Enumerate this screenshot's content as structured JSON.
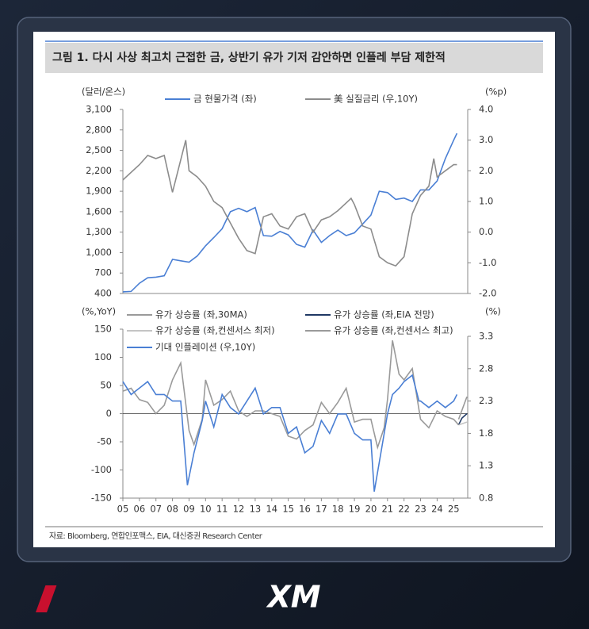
{
  "title": "그림 1. 다시 사상 최고치 근접한 금, 상반기 유가 기저 감안하면 인플레 부담 제한적",
  "source": "자료: Bloomberg, 연합인포맥스, EIA, 대신증권 Research Center",
  "logo": "XM",
  "chart_data": [
    {
      "type": "line",
      "y_label": "(달러/온스)",
      "y2_label": "(%p)",
      "xlim": [
        2005,
        2025.85
      ],
      "ylim": [
        400,
        3100
      ],
      "yticks": [
        {
          "value": 400,
          "label": "400"
        },
        {
          "value": 700,
          "label": "700"
        },
        {
          "value": 1000,
          "label": "1,000"
        },
        {
          "value": 1300,
          "label": "1,300"
        },
        {
          "value": 1600,
          "label": "1,600"
        },
        {
          "value": 1900,
          "label": "1,900"
        },
        {
          "value": 2200,
          "label": "2,200"
        },
        {
          "value": 2500,
          "label": "2,500"
        },
        {
          "value": 2800,
          "label": "2,800"
        },
        {
          "value": 3100,
          "label": "3,100"
        }
      ],
      "y2lim": [
        -2,
        4
      ],
      "y2ticks": [
        {
          "value": -2,
          "label": "-2.0"
        },
        {
          "value": -1,
          "label": "-1.0"
        },
        {
          "value": 0,
          "label": "0.0"
        },
        {
          "value": 1,
          "label": "1.0"
        },
        {
          "value": 2,
          "label": "2.0"
        },
        {
          "value": 3,
          "label": "3.0"
        },
        {
          "value": 4,
          "label": "4.0"
        }
      ],
      "series": [
        {
          "name": "금 현물가격 (좌)",
          "color": "#4a7fd4",
          "x": [
            2005,
            2005.5,
            2006,
            2006.5,
            2007,
            2007.5,
            2008,
            2008.5,
            2009,
            2009.5,
            2010,
            2010.5,
            2011,
            2011.5,
            2012,
            2012.5,
            2013,
            2013.5,
            2014,
            2014.5,
            2015,
            2015.5,
            2016,
            2016.5,
            2017,
            2017.5,
            2018,
            2018.5,
            2019,
            2019.5,
            2020,
            2020.5,
            2021,
            2021.5,
            2022,
            2022.5,
            2023,
            2023.5,
            2024,
            2024.5,
            2025,
            2025.2
          ],
          "values": [
            425,
            430,
            550,
            630,
            640,
            660,
            900,
            880,
            860,
            950,
            1100,
            1220,
            1350,
            1600,
            1650,
            1600,
            1660,
            1250,
            1240,
            1310,
            1260,
            1120,
            1080,
            1330,
            1150,
            1250,
            1330,
            1250,
            1290,
            1420,
            1550,
            1900,
            1880,
            1780,
            1800,
            1750,
            1920,
            1920,
            2050,
            2380,
            2650,
            2750
          ]
        },
        {
          "name": "美 실질금리 (우,10Y)",
          "color": "#8c8c8c",
          "axis": "y2",
          "x": [
            2005,
            2006,
            2006.5,
            2007,
            2007.5,
            2008,
            2008.8,
            2009,
            2009.5,
            2010,
            2010.5,
            2011,
            2011.5,
            2012,
            2012.5,
            2013,
            2013.5,
            2014,
            2014.5,
            2015,
            2015.5,
            2016,
            2016.5,
            2017,
            2017.5,
            2018,
            2018.8,
            2019,
            2019.5,
            2020,
            2020.5,
            2021,
            2021.5,
            2022,
            2022.5,
            2023,
            2023.5,
            2023.8,
            2024,
            2024.5,
            2025,
            2025.2
          ],
          "values": [
            1.7,
            2.2,
            2.5,
            2.4,
            2.5,
            1.3,
            3.0,
            2.0,
            1.8,
            1.5,
            1.0,
            0.8,
            0.3,
            -0.2,
            -0.6,
            -0.7,
            0.5,
            0.6,
            0.2,
            0.1,
            0.5,
            0.6,
            0.0,
            0.4,
            0.5,
            0.7,
            1.1,
            0.9,
            0.2,
            0.1,
            -0.8,
            -1.0,
            -1.1,
            -0.8,
            0.6,
            1.2,
            1.5,
            2.4,
            1.8,
            2.0,
            2.2,
            2.2
          ]
        }
      ]
    },
    {
      "type": "line",
      "y_label": "(%,YoY)",
      "y2_label": "(%)",
      "xlim": [
        2005,
        2025.85
      ],
      "xticks": [
        {
          "value": 2005,
          "label": "05"
        },
        {
          "value": 2006,
          "label": "06"
        },
        {
          "value": 2007,
          "label": "07"
        },
        {
          "value": 2008,
          "label": "08"
        },
        {
          "value": 2009,
          "label": "09"
        },
        {
          "value": 2010,
          "label": "10"
        },
        {
          "value": 2011,
          "label": "11"
        },
        {
          "value": 2012,
          "label": "12"
        },
        {
          "value": 2013,
          "label": "13"
        },
        {
          "value": 2014,
          "label": "14"
        },
        {
          "value": 2015,
          "label": "15"
        },
        {
          "value": 2016,
          "label": "16"
        },
        {
          "value": 2017,
          "label": "17"
        },
        {
          "value": 2018,
          "label": "18"
        },
        {
          "value": 2019,
          "label": "19"
        },
        {
          "value": 2020,
          "label": "20"
        },
        {
          "value": 2021,
          "label": "21"
        },
        {
          "value": 2022,
          "label": "22"
        },
        {
          "value": 2023,
          "label": "23"
        },
        {
          "value": 2024,
          "label": "24"
        },
        {
          "value": 2025,
          "label": "25"
        }
      ],
      "ylim": [
        -150,
        150
      ],
      "yticks": [
        -150,
        -100,
        -50,
        0,
        50,
        100,
        150
      ],
      "y2lim": [
        0.8,
        3.3
      ],
      "y2ticks": [
        0.8,
        1.3,
        1.8,
        2.3,
        2.8,
        3.3
      ],
      "series": [
        {
          "name": "유가 상승률 (좌,30MA)",
          "color": "#9a9a9a",
          "x": [
            2005,
            2005.5,
            2006,
            2006.5,
            2007,
            2007.5,
            2008,
            2008.5,
            2009,
            2009.3,
            2009.8,
            2010,
            2010.5,
            2011,
            2011.5,
            2012,
            2012.5,
            2013,
            2013.5,
            2014,
            2014.5,
            2015,
            2015.5,
            2016,
            2016.5,
            2017,
            2017.5,
            2018,
            2018.5,
            2019,
            2019.5,
            2020,
            2020.4,
            2020.8,
            2021,
            2021.3,
            2021.7,
            2022,
            2022.5,
            2023,
            2023.5,
            2024,
            2024.5,
            2025,
            2025.3
          ],
          "values": [
            40,
            45,
            25,
            20,
            0,
            15,
            60,
            90,
            -30,
            -55,
            -10,
            60,
            15,
            25,
            40,
            5,
            -5,
            5,
            5,
            0,
            -5,
            -40,
            -45,
            -30,
            -20,
            20,
            0,
            20,
            45,
            -15,
            -10,
            -10,
            -60,
            -25,
            25,
            130,
            70,
            60,
            80,
            -10,
            -25,
            5,
            -5,
            -10,
            -20
          ]
        },
        {
          "name": "유가 상승률 (좌,EIA 전망)",
          "color": "#1f3864",
          "x": [
            2025.3,
            2025.5,
            2025.8
          ],
          "values": [
            -20,
            -8,
            0
          ]
        },
        {
          "name": "유가 상승률 (좌,컨센서스 최저)",
          "color": "#c4c4c4",
          "x": [
            2025.3,
            2025.8
          ],
          "values": [
            -20,
            -15
          ]
        },
        {
          "name": "유가 상승률 (좌,컨센서스 최고)",
          "color": "#9a9a9a",
          "x": [
            2025.3,
            2025.8
          ],
          "values": [
            -10,
            30
          ]
        },
        {
          "name": "기대 인플레이션 (우,10Y)",
          "color": "#4a7fd4",
          "axis": "y2",
          "x": [
            2005,
            2005.5,
            2006,
            2006.5,
            2007,
            2007.5,
            2008,
            2008.5,
            2008.9,
            2009.3,
            2009.8,
            2010,
            2010.5,
            2011,
            2011.5,
            2012,
            2012.5,
            2013,
            2013.5,
            2014,
            2014.5,
            2015,
            2015.5,
            2016,
            2016.5,
            2017,
            2017.5,
            2018,
            2018.5,
            2019,
            2019.5,
            2020,
            2020.2,
            2020.6,
            2021,
            2021.3,
            2021.7,
            2022,
            2022.5,
            2022.9,
            2023,
            2023.5,
            2024,
            2024.5,
            2025,
            2025.2
          ],
          "values": [
            2.6,
            2.4,
            2.5,
            2.6,
            2.4,
            2.4,
            2.3,
            2.3,
            1.0,
            1.5,
            2.0,
            2.3,
            1.9,
            2.4,
            2.2,
            2.1,
            2.3,
            2.5,
            2.1,
            2.2,
            2.2,
            1.8,
            1.9,
            1.5,
            1.6,
            2.0,
            1.8,
            2.1,
            2.1,
            1.8,
            1.7,
            1.7,
            0.9,
            1.5,
            2.1,
            2.4,
            2.5,
            2.6,
            2.7,
            2.3,
            2.3,
            2.2,
            2.3,
            2.2,
            2.3,
            2.4
          ]
        }
      ]
    }
  ]
}
